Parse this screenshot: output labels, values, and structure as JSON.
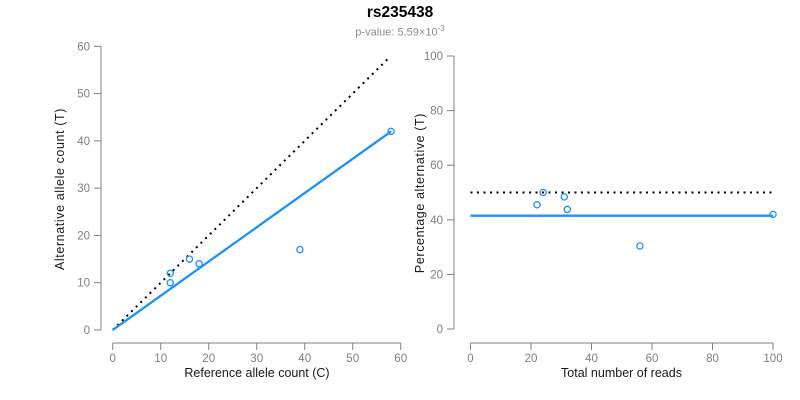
{
  "header": {
    "title": "rs235438",
    "pvalue_prefix": "p-value: 5.59×10",
    "pvalue_exponent": "-3"
  },
  "colors": {
    "accent_blue": "#1E90FF",
    "dotted_black": "#000000",
    "axis_gray": "#808080",
    "tick_text_gray": "#7f7f7f"
  },
  "chart_data": [
    {
      "type": "scatter",
      "title": "rs235438",
      "subtitle": "p-value: 5.59×10^-3",
      "xlabel": "Reference allele count (C)",
      "ylabel": "Alternative allele count (T)",
      "xlim": [
        0,
        60
      ],
      "ylim": [
        0,
        60
      ],
      "xticks": [
        0,
        10,
        20,
        30,
        40,
        50,
        60
      ],
      "yticks": [
        0,
        10,
        20,
        30,
        40,
        50,
        60
      ],
      "grid": false,
      "marker": "open-circle",
      "marker_color": "#1E90FF",
      "points": [
        {
          "x": 12,
          "y": 12
        },
        {
          "x": 12,
          "y": 10
        },
        {
          "x": 16,
          "y": 15
        },
        {
          "x": 18,
          "y": 14
        },
        {
          "x": 39,
          "y": 17
        },
        {
          "x": 58,
          "y": 42
        }
      ],
      "lines": [
        {
          "name": "identity-line",
          "style": "dotted",
          "color": "#000000",
          "from": {
            "x": 0,
            "y": 0
          },
          "to": {
            "x": 57.5,
            "y": 57.5
          }
        },
        {
          "name": "fit-line",
          "style": "solid",
          "color": "#1E90FF",
          "from": {
            "x": 0,
            "y": 0
          },
          "to": {
            "x": 58,
            "y": 42
          }
        }
      ]
    },
    {
      "type": "scatter",
      "xlabel": "Total number of reads",
      "ylabel": "Percentage alternative (T)",
      "xlim": [
        0,
        100
      ],
      "ylim": [
        0,
        100
      ],
      "xticks": [
        0,
        20,
        40,
        60,
        80,
        100
      ],
      "yticks": [
        0,
        20,
        40,
        60,
        80,
        100
      ],
      "grid": false,
      "marker": "open-circle",
      "marker_color": "#1E90FF",
      "points": [
        {
          "x": 22,
          "y": 45.5
        },
        {
          "x": 24,
          "y": 50
        },
        {
          "x": 31,
          "y": 48.4
        },
        {
          "x": 32,
          "y": 43.8
        },
        {
          "x": 56,
          "y": 30.4
        },
        {
          "x": 100,
          "y": 42
        }
      ],
      "lines": [
        {
          "name": "expected-50pct-line",
          "style": "dotted",
          "color": "#000000",
          "hline": 50
        },
        {
          "name": "overall-pct-line",
          "style": "solid",
          "color": "#1E90FF",
          "hline": 41.5
        }
      ]
    }
  ]
}
